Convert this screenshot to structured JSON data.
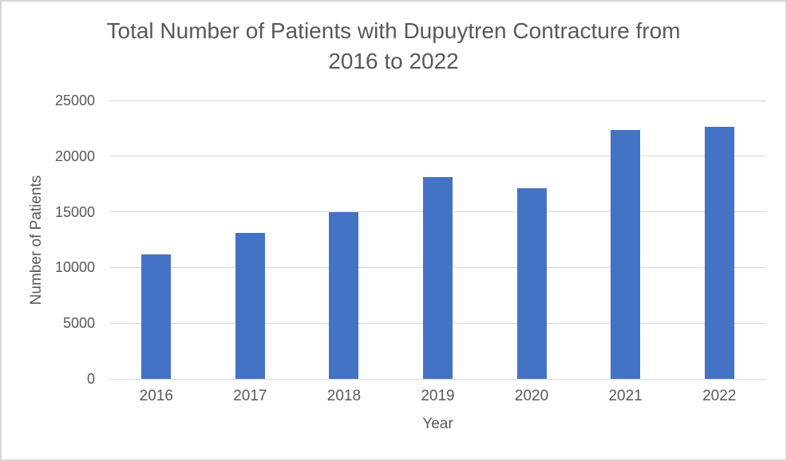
{
  "chart_data": {
    "type": "bar",
    "title": "Total Number of Patients with Dupuytren Contracture from 2016 to 2022",
    "title_lines": [
      "Total Number of Patients with Dupuytren Contracture from",
      "2016 to 2022"
    ],
    "xlabel": "Year",
    "ylabel": "Number of Patients",
    "categories": [
      "2016",
      "2017",
      "2018",
      "2019",
      "2020",
      "2021",
      "2022"
    ],
    "values": [
      11200,
      13100,
      15000,
      18100,
      17100,
      22350,
      22650
    ],
    "ylim": [
      0,
      25000
    ],
    "yticks": [
      0,
      5000,
      10000,
      15000,
      20000,
      25000
    ],
    "grid": "horizontal",
    "legend": "none",
    "bar_color": "#4472C4",
    "gridline_color": "#D9D9D9",
    "text_color": "#595959"
  }
}
